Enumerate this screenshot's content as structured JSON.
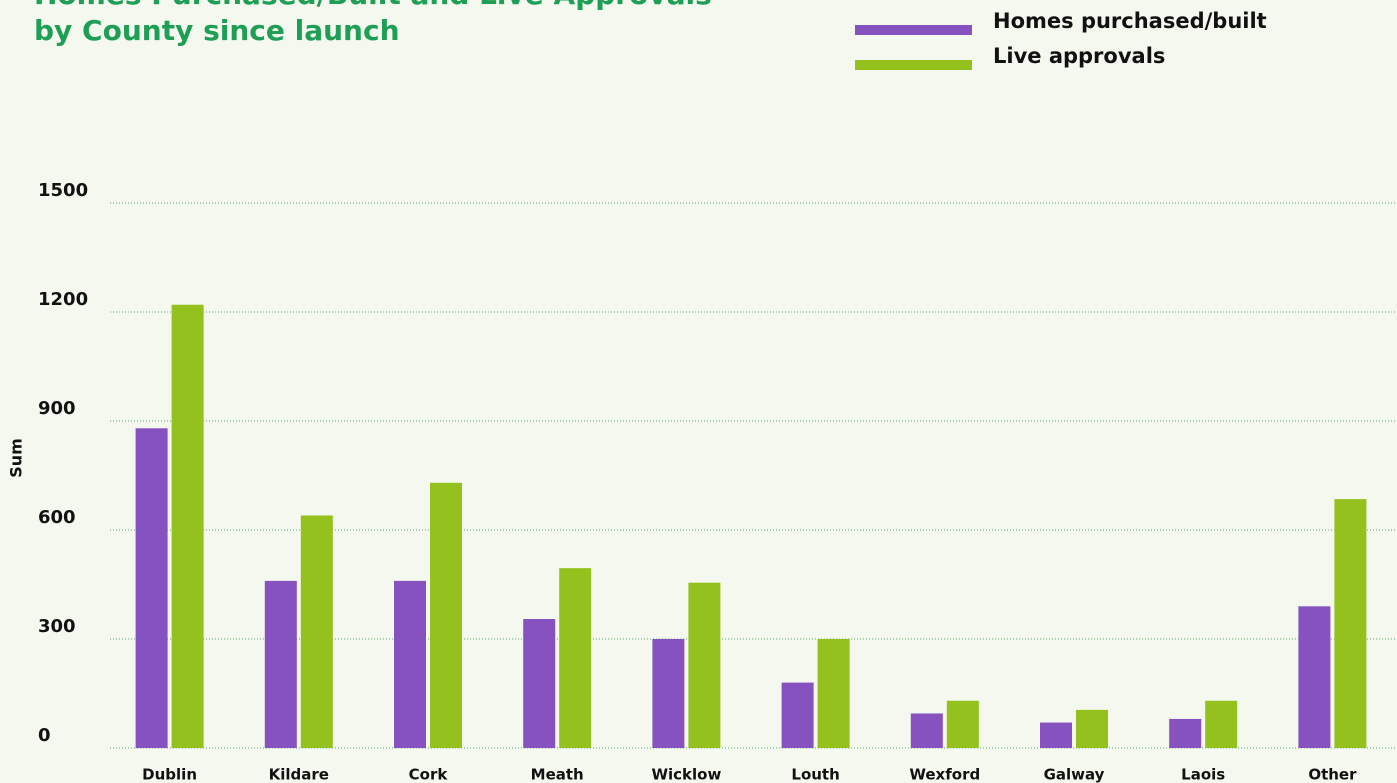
{
  "chart_data": {
    "type": "bar",
    "title": [
      "Homes Purchased/Built and Live Approvals",
      "by County since launch"
    ],
    "y_label": "Sum",
    "categories": [
      "Dublin",
      "Kildare",
      "Cork",
      "Meath",
      "Wicklow",
      "Louth",
      "Wexford",
      "Galway",
      "Laois",
      "Other"
    ],
    "series": [
      {
        "name": "Homes purchased/built",
        "color": "#8652c0",
        "values": [
          880,
          460,
          460,
          355,
          300,
          180,
          95,
          70,
          80,
          390
        ]
      },
      {
        "name": "Live approvals",
        "color": "#95c11f",
        "values": [
          1220,
          640,
          730,
          495,
          455,
          300,
          130,
          105,
          130,
          685
        ]
      }
    ],
    "ylim": [
      0,
      1500
    ],
    "yticks": [
      0,
      300,
      600,
      900,
      1200,
      1500
    ],
    "grid": true,
    "legend": "top-right"
  }
}
